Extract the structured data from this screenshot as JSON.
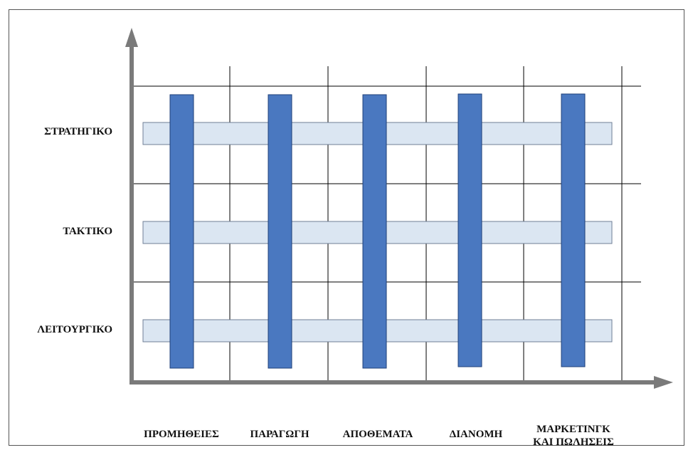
{
  "diagram": {
    "rows": [
      {
        "label": "ΣΤΡΑΤΗΓΙΚΟ"
      },
      {
        "label": "ΤΑΚΤΙΚΟ"
      },
      {
        "label": "ΛΕΙΤΟΥΡΓΙΚΟ"
      }
    ],
    "columns": [
      {
        "label": "ΠΡΟΜΗΘΕΙΕΣ"
      },
      {
        "label": "ΠΑΡΑΓΩΓΗ"
      },
      {
        "label": "ΑΠΟΘΕΜΑΤΑ"
      },
      {
        "label": "ΔΙΑΝΟΜΗ"
      },
      {
        "label": "ΜΑΡΚΕΤΙΝΓΚ\nΚΑΙ ΠΩΛΗΣΕΙΣ"
      }
    ],
    "colors": {
      "column_bar_fill": "#4a78c0",
      "column_bar_stroke": "#1f3f78",
      "row_bar_fill": "#dbe6f2",
      "row_bar_stroke": "#6f7f96",
      "axis": "#7a7a7a",
      "grid": "#000000"
    }
  }
}
